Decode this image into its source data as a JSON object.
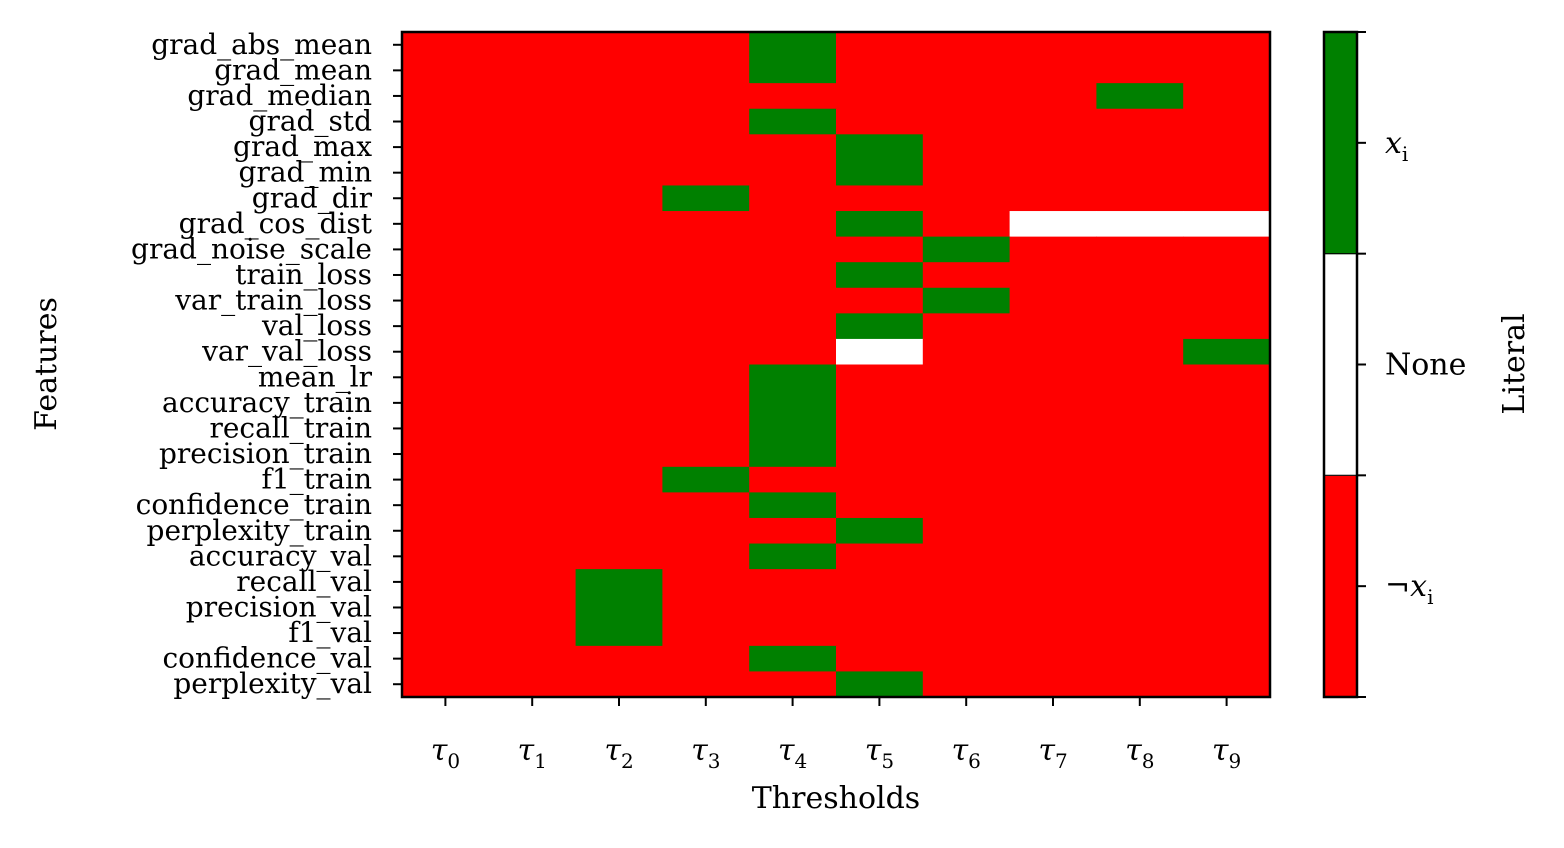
{
  "chart_data": {
    "type": "heatmap",
    "xlabel": "Thresholds",
    "ylabel": "Features",
    "x_categories": [
      {
        "sym": "τ",
        "sub": "0"
      },
      {
        "sym": "τ",
        "sub": "1"
      },
      {
        "sym": "τ",
        "sub": "2"
      },
      {
        "sym": "τ",
        "sub": "3"
      },
      {
        "sym": "τ",
        "sub": "4"
      },
      {
        "sym": "τ",
        "sub": "5"
      },
      {
        "sym": "τ",
        "sub": "6"
      },
      {
        "sym": "τ",
        "sub": "7"
      },
      {
        "sym": "τ",
        "sub": "8"
      },
      {
        "sym": "τ",
        "sub": "9"
      }
    ],
    "y_categories": [
      "grad_abs_mean",
      "grad_mean",
      "grad_median",
      "grad_std",
      "grad_max",
      "grad_min",
      "grad_dir",
      "grad_cos_dist",
      "grad_noise_scale",
      "train_loss",
      "var_train_loss",
      "val_loss",
      "var_val_loss",
      "mean_lr",
      "accuracy_train",
      "recall_train",
      "precision_train",
      "f1_train",
      "confidence_train",
      "perplexity_train",
      "accuracy_val",
      "recall_val",
      "precision_val",
      "f1_val",
      "confidence_val",
      "perplexity_val"
    ],
    "values": [
      [
        0,
        0,
        0,
        0,
        2,
        0,
        0,
        0,
        0,
        0
      ],
      [
        0,
        0,
        0,
        0,
        2,
        0,
        0,
        0,
        0,
        0
      ],
      [
        0,
        0,
        0,
        0,
        0,
        0,
        0,
        0,
        2,
        0
      ],
      [
        0,
        0,
        0,
        0,
        2,
        0,
        0,
        0,
        0,
        0
      ],
      [
        0,
        0,
        0,
        0,
        0,
        2,
        0,
        0,
        0,
        0
      ],
      [
        0,
        0,
        0,
        0,
        0,
        2,
        0,
        0,
        0,
        0
      ],
      [
        0,
        0,
        0,
        2,
        0,
        0,
        0,
        0,
        0,
        0
      ],
      [
        0,
        0,
        0,
        0,
        0,
        2,
        0,
        1,
        1,
        1
      ],
      [
        0,
        0,
        0,
        0,
        0,
        0,
        2,
        0,
        0,
        0
      ],
      [
        0,
        0,
        0,
        0,
        0,
        2,
        0,
        0,
        0,
        0
      ],
      [
        0,
        0,
        0,
        0,
        0,
        0,
        2,
        0,
        0,
        0
      ],
      [
        0,
        0,
        0,
        0,
        0,
        2,
        0,
        0,
        0,
        0
      ],
      [
        0,
        0,
        0,
        0,
        0,
        1,
        0,
        0,
        0,
        2
      ],
      [
        0,
        0,
        0,
        0,
        2,
        0,
        0,
        0,
        0,
        0
      ],
      [
        0,
        0,
        0,
        0,
        2,
        0,
        0,
        0,
        0,
        0
      ],
      [
        0,
        0,
        0,
        0,
        2,
        0,
        0,
        0,
        0,
        0
      ],
      [
        0,
        0,
        0,
        0,
        2,
        0,
        0,
        0,
        0,
        0
      ],
      [
        0,
        0,
        0,
        2,
        0,
        0,
        0,
        0,
        0,
        0
      ],
      [
        0,
        0,
        0,
        0,
        2,
        0,
        0,
        0,
        0,
        0
      ],
      [
        0,
        0,
        0,
        0,
        0,
        2,
        0,
        0,
        0,
        0
      ],
      [
        0,
        0,
        0,
        0,
        2,
        0,
        0,
        0,
        0,
        0
      ],
      [
        0,
        0,
        2,
        0,
        0,
        0,
        0,
        0,
        0,
        0
      ],
      [
        0,
        0,
        2,
        0,
        0,
        0,
        0,
        0,
        0,
        0
      ],
      [
        0,
        0,
        2,
        0,
        0,
        0,
        0,
        0,
        0,
        0
      ],
      [
        0,
        0,
        0,
        0,
        2,
        0,
        0,
        0,
        0,
        0
      ],
      [
        0,
        0,
        0,
        0,
        0,
        2,
        0,
        0,
        0,
        0
      ]
    ],
    "colorbar": {
      "label": "Literal",
      "levels": [
        {
          "value": 0,
          "color": "#ff0000",
          "label_sym": "¬",
          "label_var": "x",
          "label_sub": "i"
        },
        {
          "value": 1,
          "color": "#ffffff",
          "label_text": "None"
        },
        {
          "value": 2,
          "color": "#008000",
          "label_sym": "",
          "label_var": "x",
          "label_sub": "i"
        }
      ]
    }
  }
}
